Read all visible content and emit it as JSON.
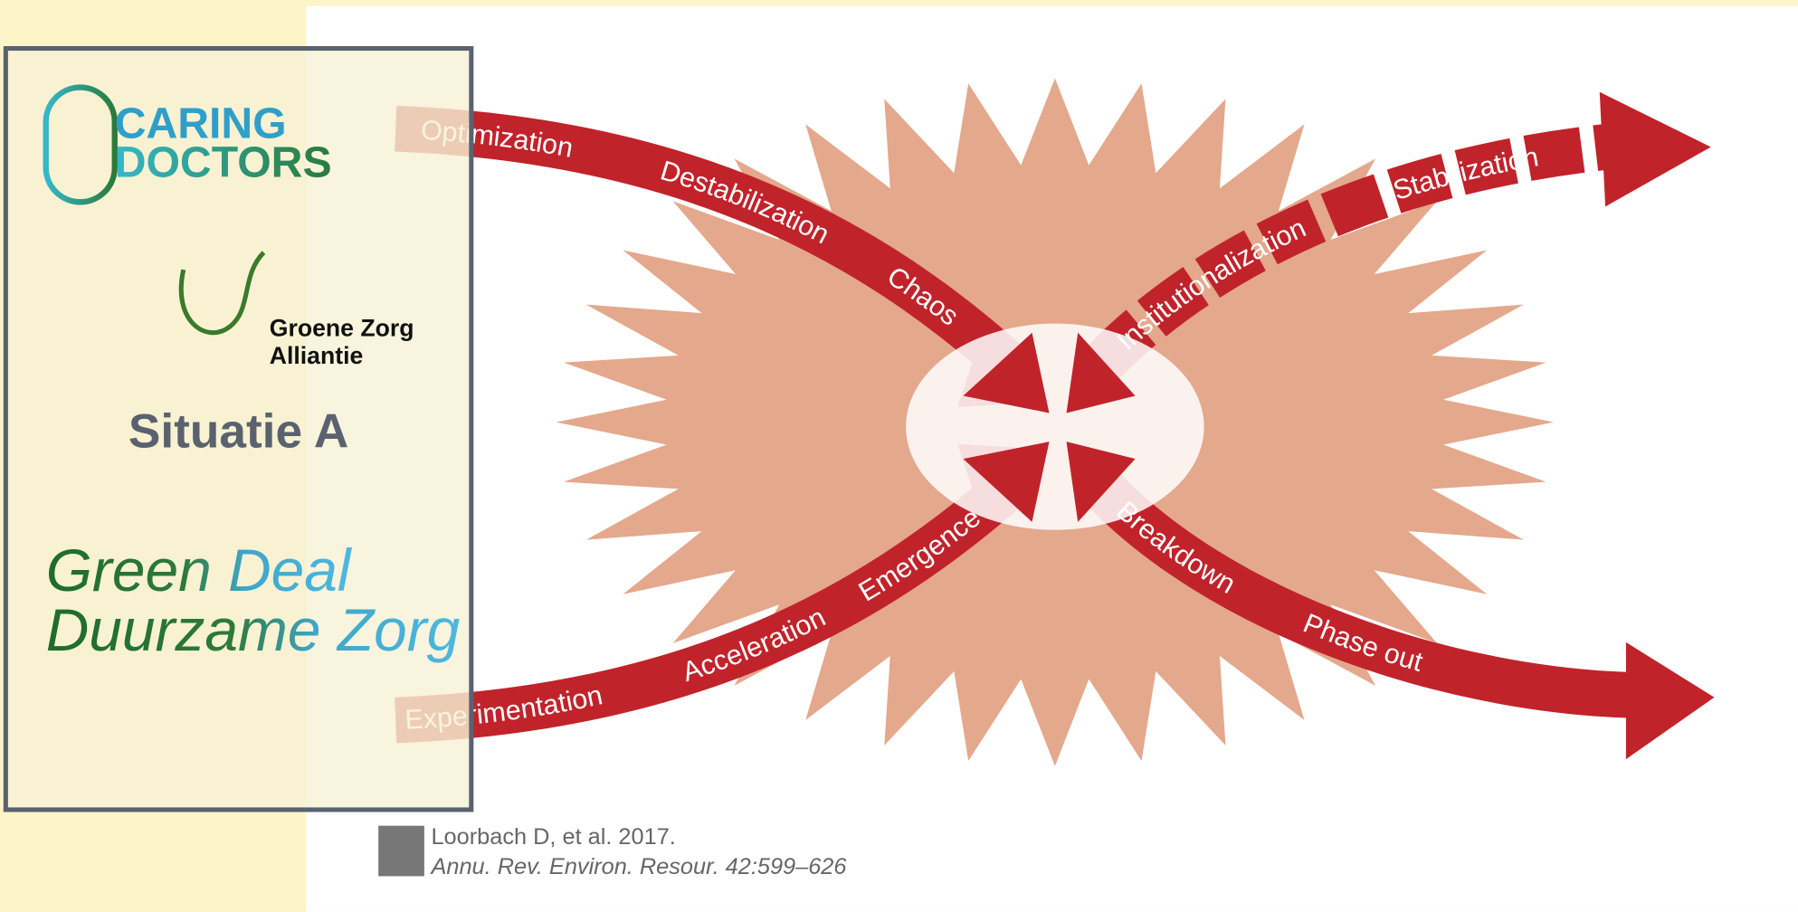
{
  "logos": {
    "caring_doctors": {
      "line1": "CARING",
      "line2": "DOCTORS"
    },
    "groene_zorg": {
      "line1": "Groene Zorg",
      "line2": "Alliantie"
    }
  },
  "situation": "Situatie A",
  "title": {
    "line1": "Green Deal",
    "line2": "Duurzame Zorg"
  },
  "diagram": {
    "labels": {
      "optimization": "Optimization",
      "destabilization": "Destabilization",
      "chaos": "Chaos",
      "institutionalization": "Institutionalization",
      "stabilization": "Stabilization",
      "experimentation": "Experimentation",
      "acceleration": "Acceleration",
      "emergence": "Emergence",
      "breakdown": "Breakdown",
      "phase_out": "Phase out"
    }
  },
  "citation": {
    "line1": "Loorbach D, et al. 2017.",
    "line2": "Annu. Rev. Environ. Resour. 42:599–626"
  }
}
